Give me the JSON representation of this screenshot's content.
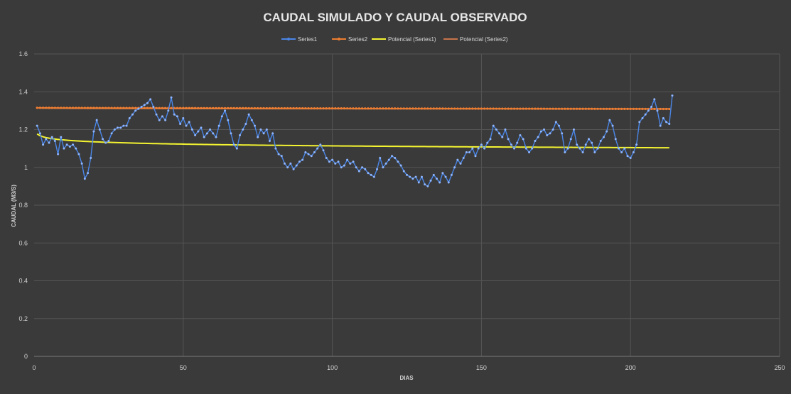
{
  "colors": {
    "background": "#3a3a3a",
    "series1": "#4a86e8",
    "series2": "#ed7d31",
    "trend1": "#f4f431",
    "trend2": "#c8744b"
  },
  "chart_data": {
    "type": "line",
    "title": "CAUDAL SIMULADO Y CAUDAL OBSERVADO",
    "xlabel": "DIAS",
    "ylabel": "CAUDAL (M3/S)",
    "xlim": [
      0,
      250
    ],
    "ylim": [
      0,
      1.6
    ],
    "x_ticks": [
      "0",
      "50",
      "100",
      "150",
      "200",
      "250"
    ],
    "y_ticks": [
      "0",
      "0.2",
      "0.4",
      "0.6",
      "0.8",
      "1",
      "1.2",
      "1.4",
      "1.6"
    ],
    "grid": true,
    "legend_position": "top",
    "legend": [
      "Series1",
      "Series2",
      "Potencial (Series1)",
      "Potencial (Series2)"
    ],
    "series": [
      {
        "name": "Series1",
        "x_start": 1,
        "x_step": 1,
        "values": [
          1.22,
          1.18,
          1.12,
          1.15,
          1.13,
          1.16,
          1.14,
          1.07,
          1.16,
          1.1,
          1.12,
          1.11,
          1.12,
          1.1,
          1.07,
          1.02,
          0.94,
          0.97,
          1.05,
          1.19,
          1.25,
          1.2,
          1.15,
          1.13,
          1.14,
          1.18,
          1.2,
          1.21,
          1.21,
          1.22,
          1.22,
          1.26,
          1.28,
          1.3,
          1.31,
          1.32,
          1.33,
          1.34,
          1.36,
          1.32,
          1.28,
          1.25,
          1.27,
          1.25,
          1.3,
          1.37,
          1.28,
          1.27,
          1.23,
          1.26,
          1.22,
          1.24,
          1.2,
          1.17,
          1.19,
          1.21,
          1.16,
          1.18,
          1.2,
          1.18,
          1.16,
          1.22,
          1.27,
          1.3,
          1.25,
          1.18,
          1.12,
          1.1,
          1.17,
          1.2,
          1.23,
          1.28,
          1.25,
          1.22,
          1.16,
          1.2,
          1.18,
          1.2,
          1.14,
          1.18,
          1.1,
          1.07,
          1.06,
          1.02,
          1.0,
          1.02,
          0.99,
          1.01,
          1.03,
          1.04,
          1.08,
          1.07,
          1.06,
          1.08,
          1.1,
          1.12,
          1.09,
          1.05,
          1.03,
          1.04,
          1.02,
          1.03,
          1.0,
          1.01,
          1.04,
          1.02,
          1.03,
          1.0,
          0.98,
          1.0,
          0.99,
          0.97,
          0.96,
          0.95,
          0.99,
          1.05,
          1.0,
          1.02,
          1.04,
          1.06,
          1.05,
          1.03,
          1.01,
          0.98,
          0.96,
          0.95,
          0.94,
          0.95,
          0.92,
          0.95,
          0.91,
          0.9,
          0.93,
          0.96,
          0.94,
          0.92,
          0.97,
          0.95,
          0.92,
          0.96,
          1.0,
          1.04,
          1.02,
          1.05,
          1.08,
          1.08,
          1.1,
          1.06,
          1.1,
          1.12,
          1.1,
          1.13,
          1.15,
          1.22,
          1.2,
          1.18,
          1.16,
          1.2,
          1.15,
          1.12,
          1.1,
          1.13,
          1.17,
          1.15,
          1.1,
          1.08,
          1.1,
          1.14,
          1.16,
          1.19,
          1.2,
          1.17,
          1.18,
          1.2,
          1.24,
          1.22,
          1.18,
          1.08,
          1.1,
          1.15,
          1.2,
          1.12,
          1.1,
          1.08,
          1.12,
          1.15,
          1.13,
          1.08,
          1.1,
          1.14,
          1.16,
          1.19,
          1.25,
          1.22,
          1.15,
          1.1,
          1.08,
          1.1,
          1.06,
          1.05,
          1.08,
          1.12,
          1.24,
          1.26,
          1.28,
          1.3,
          1.32,
          1.36,
          1.3,
          1.22,
          1.26,
          1.24,
          1.23,
          1.38
        ]
      },
      {
        "name": "Series2",
        "x_start": 1,
        "x_end": 213,
        "values_from": 1.315,
        "values_to": 1.309
      },
      {
        "name": "Potencial (Series1)",
        "a": 1.177,
        "b": -0.012,
        "x_start": 1,
        "x_end": 213
      },
      {
        "name": "Potencial (Series2)",
        "a": 1.315,
        "b": -0.0008,
        "x_start": 1,
        "x_end": 213
      }
    ]
  }
}
